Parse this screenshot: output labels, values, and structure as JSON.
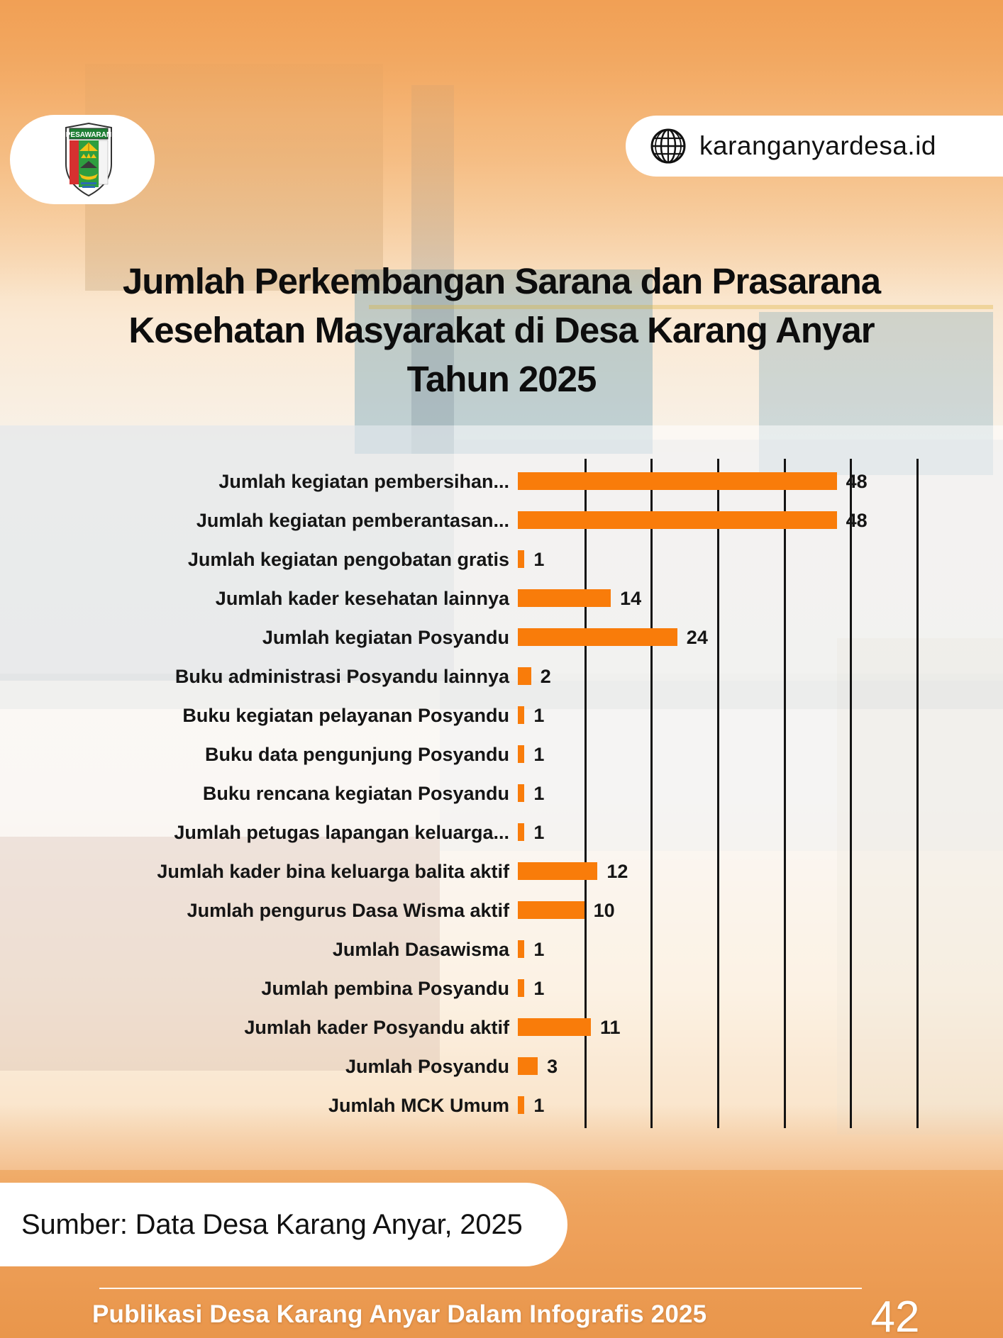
{
  "page": {
    "brand": {
      "logo_title": "PESAWARAN",
      "website": "karanganyardesa.id"
    },
    "title_lines": [
      "Jumlah Perkembangan Sarana dan Prasarana",
      "Kesehatan Masyarakat di Desa Karang Anyar",
      "Tahun 2025"
    ],
    "source_note": "Sumber: Data Desa Karang Anyar, 2025",
    "footer": {
      "text": "Publikasi Desa Karang Anyar Dalam Infografis 2025",
      "page_number": "42"
    }
  },
  "chart_data": {
    "type": "bar",
    "orientation": "horizontal",
    "title": "Jumlah Perkembangan Sarana dan Prasarana Kesehatan Masyarakat di Desa Karang Anyar Tahun 2025",
    "categories": [
      "Jumlah kegiatan pembersihan...",
      "Jumlah kegiatan pemberantasan...",
      "Jumlah kegiatan pengobatan gratis",
      "Jumlah kader kesehatan lainnya",
      "Jumlah kegiatan Posyandu",
      "Buku administrasi Posyandu lainnya",
      "Buku kegiatan pelayanan Posyandu",
      "Buku data pengunjung Posyandu",
      "Buku rencana kegiatan Posyandu",
      "Jumlah petugas lapangan keluarga...",
      "Jumlah kader bina keluarga balita aktif",
      "Jumlah pengurus Dasa Wisma aktif",
      "Jumlah Dasawisma",
      "Jumlah pembina Posyandu",
      "Jumlah kader Posyandu aktif",
      "Jumlah Posyandu",
      "Jumlah MCK Umum"
    ],
    "values": [
      48,
      48,
      1,
      14,
      24,
      2,
      1,
      1,
      1,
      1,
      12,
      10,
      1,
      1,
      11,
      3,
      1
    ],
    "xlim": [
      0,
      60
    ],
    "grid_step": 10,
    "grid": true,
    "data_labels": true,
    "bar_color": "#F97C0A",
    "gridline_color": "#141414",
    "label_color": "#151515",
    "xlabel": "",
    "ylabel": ""
  }
}
